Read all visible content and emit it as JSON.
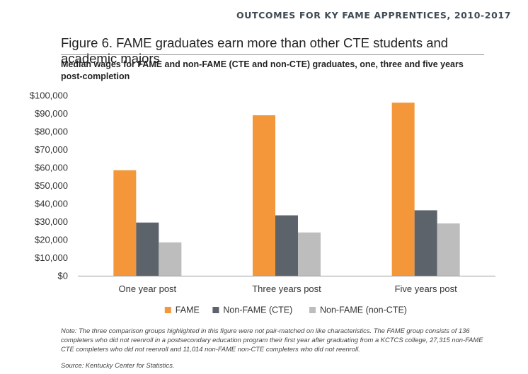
{
  "header": "OUTCOMES FOR KY FAME APPRENTICES, 2010-2017",
  "figure_title": "Figure 6. FAME graduates earn more than other CTE students and academic majors",
  "note": "Note: The three comparison groups highlighted in this figure were not pair-matched on like characteristics. The FAME group consists of 136 completers who did not reenroll in a postsecondary education program their first year after graduating from a KCTCS college, 27,315 non-FAME CTE completers who did not reenroll and 11,014 non-FAME non-CTE completers who did not reenroll.",
  "source": "Source: Kentucky Center for Statistics.",
  "chart_data": {
    "type": "bar",
    "subtitle": "Median wages for FAME and non-FAME (CTE and non-CTE) graduates, one, three and five years post-completion",
    "categories": [
      "One year post",
      "Three years post",
      "Five years post"
    ],
    "series": [
      {
        "name": "FAME",
        "color": "#f3973a",
        "values": [
          58500,
          89000,
          96000
        ]
      },
      {
        "name": "Non-FAME (CTE)",
        "color": "#5c636b",
        "values": [
          29500,
          33500,
          36300
        ]
      },
      {
        "name": "Non-FAME (non-CTE)",
        "color": "#bdbdbd",
        "values": [
          18500,
          24000,
          29000
        ]
      }
    ],
    "ylim": [
      0,
      100000
    ],
    "yticks": [
      0,
      10000,
      20000,
      30000,
      40000,
      50000,
      60000,
      70000,
      80000,
      90000,
      100000
    ],
    "ytick_labels": [
      "$0",
      "$10,000",
      "$20,000",
      "$30,000",
      "$40,000",
      "$50,000",
      "$60,000",
      "$70,000",
      "$80,000",
      "$90,000",
      "$100,000"
    ],
    "grid": false,
    "legend": "bottom-center"
  }
}
